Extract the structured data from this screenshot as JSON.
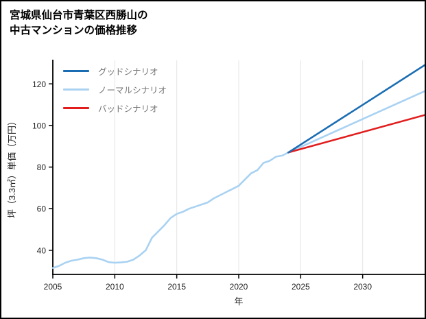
{
  "page": {
    "background": "#ffffff",
    "border_color": "#000000"
  },
  "header": {
    "title_line1": "宮城県仙台市青葉区西勝山の",
    "title_line2": "中古マンションの価格推移"
  },
  "chart_data": {
    "type": "line",
    "title": "宮城県仙台市青葉区西勝山の中古マンションの価格推移",
    "xlabel": "年",
    "ylabel": "坪（3.3㎡）単価（万円）",
    "xlim": [
      2005,
      2035
    ],
    "ylim": [
      28.4,
      131.3
    ],
    "x_ticks": [
      2005,
      2010,
      2015,
      2020,
      2025,
      2030
    ],
    "y_ticks": [
      40,
      60,
      80,
      100,
      120
    ],
    "grid": "vertical-only",
    "grid_color": "#e4e4e4",
    "axis_color": "#000000",
    "legend_position": "top-left",
    "legend_text_color": "#757575",
    "series": [
      {
        "name": "グッドシナリオ",
        "color": "#1b6db3",
        "x": [
          2024,
          2035
        ],
        "y": [
          87,
          129
        ]
      },
      {
        "name": "ノーマルシナリオ",
        "color": "#a9d2f2",
        "x": [
          2005,
          2005.5,
          2006,
          2006.5,
          2007,
          2007.5,
          2008,
          2008.5,
          2009,
          2009.5,
          2010,
          2010.5,
          2011,
          2011.5,
          2012,
          2012.5,
          2013,
          2013.5,
          2014,
          2014.5,
          2015,
          2015.5,
          2016,
          2016.5,
          2017,
          2017.5,
          2018,
          2018.5,
          2019,
          2019.5,
          2020,
          2020.5,
          2021,
          2021.5,
          2022,
          2022.5,
          2023,
          2023.5,
          2024,
          2035
        ],
        "y": [
          31.5,
          32.5,
          34,
          35,
          35.5,
          36.2,
          36.5,
          36.2,
          35.5,
          34.3,
          34,
          34.2,
          34.5,
          35.5,
          37.5,
          40,
          46,
          49,
          52,
          55.5,
          57.5,
          58.5,
          60,
          61,
          62,
          63,
          65,
          66.5,
          68,
          69.5,
          71,
          74,
          77,
          78.5,
          82,
          83,
          85,
          85.5,
          87,
          116.5
        ]
      },
      {
        "name": "バッドシナリオ",
        "color": "#e11d1d",
        "x": [
          2024,
          2035
        ],
        "y": [
          87,
          105
        ]
      }
    ]
  }
}
